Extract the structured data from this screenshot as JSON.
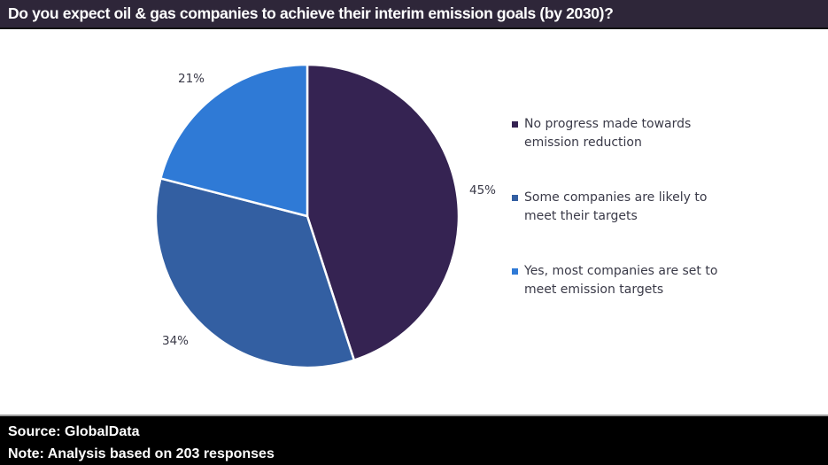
{
  "header": {
    "title": "Do you expect oil & gas companies to achieve their interim emission goals (by 2030)?"
  },
  "chart_data": {
    "type": "pie",
    "title": "Do you expect oil & gas companies to achieve their interim emission goals (by 2030)?",
    "categories": [
      "No progress made towards emission reduction",
      "Some companies are likely to meet their targets",
      "Yes, most companies are set to meet emission targets"
    ],
    "values": [
      45,
      34,
      21
    ],
    "labels": [
      "45%",
      "34%",
      "21%"
    ],
    "colors": [
      "#352352",
      "#335fa2",
      "#2f7ad6"
    ],
    "start_angle_deg": 0,
    "direction": "clockwise",
    "legend_position": "right"
  },
  "legend": {
    "items": [
      {
        "label": "No progress made towards emission reduction",
        "color": "#352352"
      },
      {
        "label": "Some companies are likely to meet their targets",
        "color": "#335fa2"
      },
      {
        "label": "Yes, most companies are set to meet emission targets",
        "color": "#2f7ad6"
      }
    ]
  },
  "footer": {
    "source": "Source: GlobalData",
    "note": "Note: Analysis based on 203 responses"
  }
}
